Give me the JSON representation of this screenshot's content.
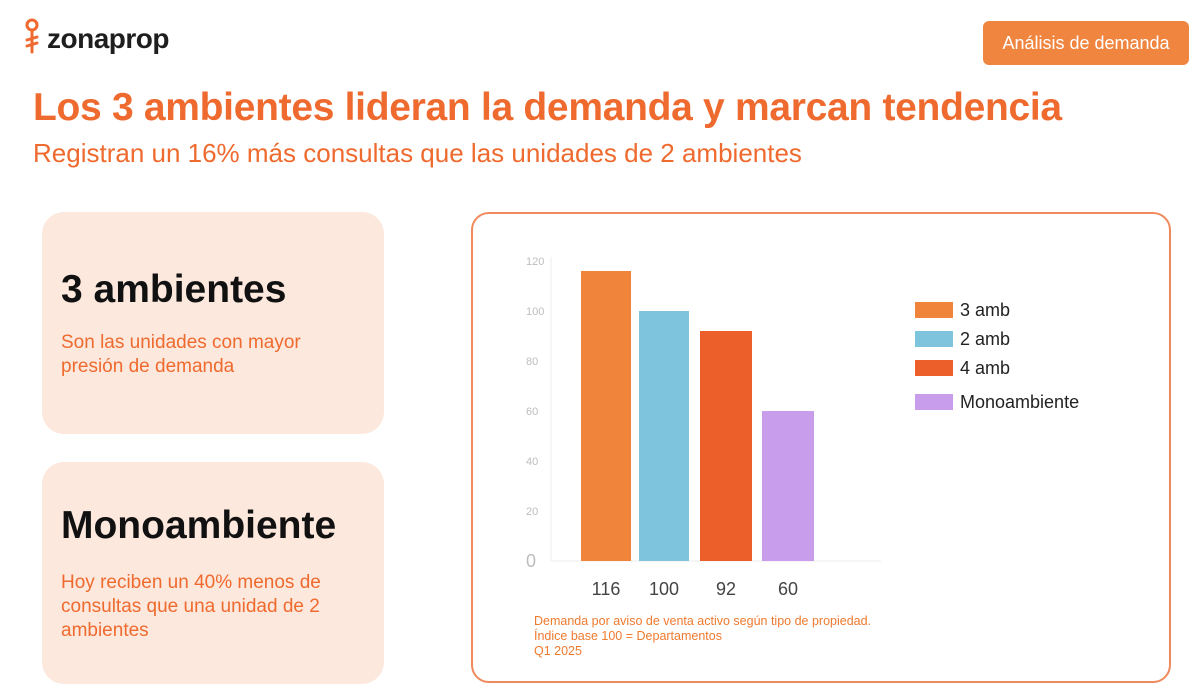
{
  "header": {
    "logo_text": "zonaprop",
    "tag_label": "Análisis de demanda"
  },
  "headline": "Los 3 ambientes lideran la demanda y marcan tendencia",
  "subheadline": "Registran un 16% más consultas que las unidades de 2 ambientes",
  "cards": [
    {
      "title": "3 ambientes",
      "text": "Son las unidades con mayor presión de demanda"
    },
    {
      "title": "Monoambiente",
      "text": "Hoy reciben un 40% menos de consultas que una unidad de 2 ambientes"
    }
  ],
  "chart_notes": [
    "Demanda por aviso de venta activo según tipo de propiedad.",
    "Índice base 100 = Departamentos",
    "Q1 2025"
  ],
  "colors": {
    "brand_orange": "#ef6a2e",
    "card_bg": "#fce8dd"
  },
  "chart_data": {
    "type": "bar",
    "categories": [
      "3 amb",
      "2 amb",
      "4 amb",
      "Monoambiente"
    ],
    "values": [
      116,
      100,
      92,
      60
    ],
    "data_labels": [
      "116",
      "100",
      "92",
      "60"
    ],
    "colors": [
      "#f0843a",
      "#7ec4dc",
      "#ec5f2b",
      "#c89dec"
    ],
    "ylim": [
      0,
      120
    ],
    "yticks": [
      0,
      20,
      40,
      60,
      80,
      100,
      120
    ],
    "ytick_labels": [
      "0",
      "20",
      "40",
      "60",
      "80",
      "100",
      "120"
    ],
    "legend": [
      "3 amb",
      "2 amb",
      "4 amb",
      "Monoambiente"
    ],
    "legend_position": "right",
    "grid": false,
    "title": "",
    "xlabel": "",
    "ylabel": ""
  }
}
